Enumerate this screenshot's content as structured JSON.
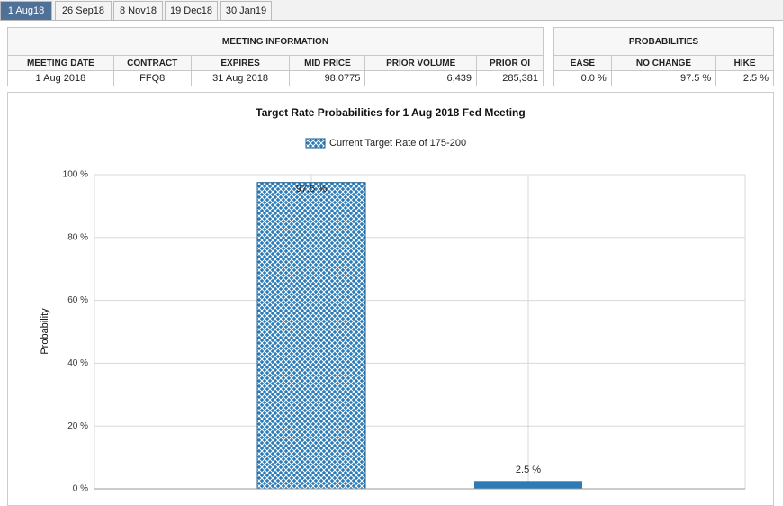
{
  "tabs": [
    "1 Aug18",
    "26 Sep18",
    "8 Nov18",
    "19 Dec18",
    "30 Jan19"
  ],
  "meeting_information": {
    "title": "MEETING INFORMATION",
    "headers": [
      "MEETING DATE",
      "CONTRACT",
      "EXPIRES",
      "MID PRICE",
      "PRIOR VOLUME",
      "PRIOR OI"
    ],
    "row": [
      "1 Aug 2018",
      "FFQ8",
      "31 Aug 2018",
      "98.0775",
      "6,439",
      "285,381"
    ]
  },
  "probabilities": {
    "title": "PROBABILITIES",
    "headers": [
      "EASE",
      "NO CHANGE",
      "HIKE"
    ],
    "row": [
      "0.0 %",
      "97.5 %",
      "2.5 %"
    ]
  },
  "chart_data": {
    "type": "bar",
    "title": "Target Rate Probabilities for 1 Aug 2018 Fed Meeting",
    "y_label": "Probability",
    "categories": [
      null,
      null
    ],
    "series": [
      {
        "name": "Current Target Rate of 175-200",
        "color": "#2b7bb9",
        "values": [
          97.5,
          2.5
        ],
        "value_labels": [
          "97.5 %",
          "2.5 %"
        ],
        "hatched": [
          true,
          false
        ]
      }
    ],
    "ylim": [
      0,
      100
    ],
    "yticks": [
      {
        "value": 0,
        "label": "0 %"
      },
      {
        "value": 20,
        "label": "20 %"
      },
      {
        "value": 40,
        "label": "40 %"
      },
      {
        "value": 60,
        "label": "60 %"
      },
      {
        "value": 80,
        "label": "80 %"
      },
      {
        "value": 100,
        "label": "100 %"
      }
    ],
    "grid": true
  }
}
